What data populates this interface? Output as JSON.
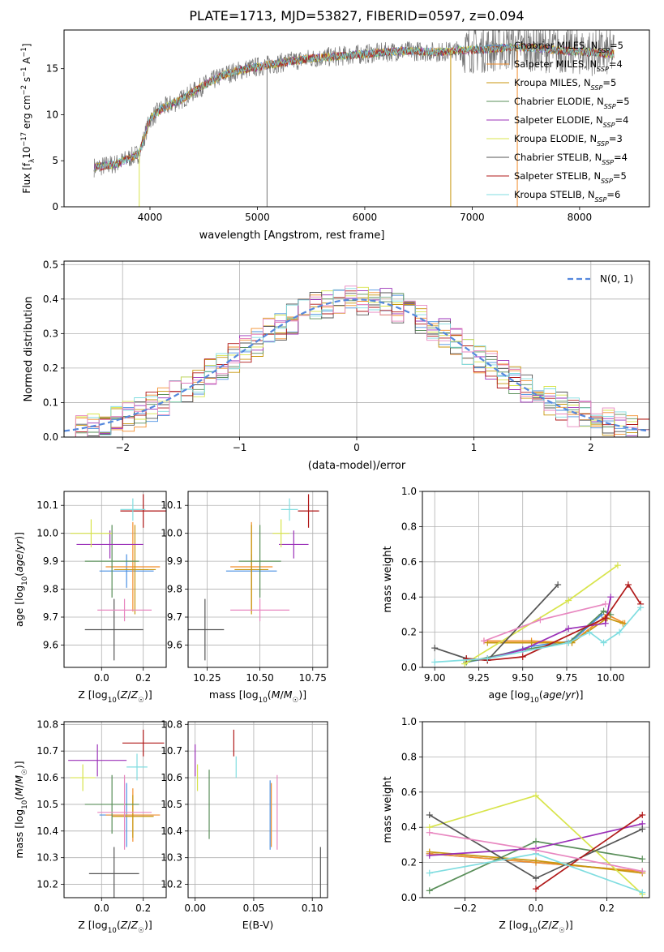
{
  "title": "PLATE=1713, MJD=53827, FIBERID=0597, z=0.094",
  "colors": {
    "chabrier_miles": "#4a90e2",
    "salpeter_miles": "#f28e2b",
    "kroupa_miles": "#c8960c",
    "chabrier_elodie": "#5a8f5a",
    "salpeter_elodie": "#9b30b8",
    "kroupa_elodie": "#d8e44c",
    "chabrier_stelib": "#555555",
    "salpeter_stelib": "#b01818",
    "kroupa_stelib": "#80dde0",
    "normal": "#5588dd",
    "pink": "#e887c0",
    "data": "#777777"
  },
  "chart_data": [
    {
      "id": "spectrum",
      "type": "line",
      "xlabel": "wavelength [Angstrom, rest frame]",
      "ylabel": "Flux [f_λ10^-17 erg cm^-2 s^-1 A^-1]",
      "xlim": [
        3200,
        8650
      ],
      "ylim": [
        0,
        19.2
      ],
      "xticks": [
        4000,
        5000,
        6000,
        7000,
        8000
      ],
      "yticks": [
        0,
        5,
        10,
        15
      ],
      "legend_position": "top-right",
      "legend": [
        {
          "label": "Chabrier MILES, N_SSP=5",
          "color_key": "chabrier_miles"
        },
        {
          "label": "Salpeter MILES, N_SSP=4",
          "color_key": "salpeter_miles"
        },
        {
          "label": "Kroupa MILES, N_SSP=5",
          "color_key": "kroupa_miles"
        },
        {
          "label": "Chabrier ELODIE, N_SSP=5",
          "color_key": "chabrier_elodie"
        },
        {
          "label": "Salpeter ELODIE, N_SSP=4",
          "color_key": "salpeter_elodie"
        },
        {
          "label": "Kroupa ELODIE, N_SSP=3",
          "color_key": "kroupa_elodie"
        },
        {
          "label": "Chabrier STELIB, N_SSP=4",
          "color_key": "chabrier_stelib"
        },
        {
          "label": "Salpeter STELIB, N_SSP=5",
          "color_key": "salpeter_stelib"
        },
        {
          "label": "Kroupa STELIB, N_SSP=6",
          "color_key": "kroupa_stelib"
        }
      ],
      "continuum": {
        "x": [
          3500,
          3700,
          3900,
          4000,
          4100,
          4300,
          4500,
          4700,
          4900,
          5100,
          5300,
          5500,
          5700,
          5900,
          6100,
          6300,
          6500,
          6700,
          6900,
          7100,
          7300,
          7500,
          7700,
          7900,
          8100,
          8300
        ],
        "y": [
          4.3,
          4.7,
          5.8,
          9.5,
          10.6,
          11.7,
          13.2,
          14.4,
          15.0,
          15.4,
          15.8,
          16.1,
          16.3,
          16.5,
          16.7,
          16.9,
          16.9,
          16.8,
          17.0,
          17.1,
          17.3,
          17.3,
          17.1,
          16.9,
          16.8,
          16.6
        ]
      },
      "vertical_spikes": [
        {
          "x": 3900,
          "color_key": "kroupa_elodie",
          "y0": 0,
          "y1": 6
        },
        {
          "x": 5090,
          "color_key": "data",
          "y0": 0,
          "y1": 15
        },
        {
          "x": 6800,
          "color_key": "kroupa_miles",
          "y0": 0,
          "y1": 17
        },
        {
          "x": 7420,
          "color_key": "salpeter_miles",
          "y0": 0,
          "y1": 17.5
        }
      ]
    },
    {
      "id": "residuals",
      "type": "line",
      "xlabel": "(data-model)/error",
      "ylabel": "Normed distribution",
      "xlim": [
        -2.5,
        2.5
      ],
      "ylim": [
        0,
        0.51
      ],
      "xticks": [
        -2,
        -1,
        0,
        1,
        2
      ],
      "yticks": [
        0.0,
        0.1,
        0.2,
        0.3,
        0.4,
        0.5
      ],
      "grid": true,
      "legend_position": "top-right",
      "legend": [
        {
          "label": "N(0, 1)",
          "color_key": "normal"
        }
      ],
      "bin_width": 0.1
    },
    {
      "id": "age_vs_Z",
      "type": "scatter",
      "xlabel": "Z [log10(Z/Z☉)]",
      "ylabel": "age  [log10(age/yr)]",
      "xlim": [
        -0.18,
        0.31
      ],
      "ylim": [
        9.52,
        10.15
      ],
      "xticks": [
        0.0,
        0.2
      ],
      "yticks": [
        9.6,
        9.7,
        9.8,
        9.9,
        10.0,
        10.1
      ],
      "grid": true,
      "points": [
        {
          "key": "chabrier_miles",
          "x": 0.12,
          "y": 9.865,
          "xerr": 0.13,
          "yerr": 0.06
        },
        {
          "key": "salpeter_miles",
          "x": 0.15,
          "y": 9.88,
          "xerr": 0.13,
          "yerr": 0.16
        },
        {
          "key": "kroupa_miles",
          "x": 0.16,
          "y": 9.87,
          "xerr": 0.1,
          "yerr": 0.16
        },
        {
          "key": "chabrier_elodie",
          "x": 0.05,
          "y": 9.9,
          "xerr": 0.13,
          "yerr": 0.13
        },
        {
          "key": "salpeter_elodie",
          "x": 0.04,
          "y": 9.96,
          "xerr": 0.16,
          "yerr": 0.05
        },
        {
          "key": "kroupa_elodie",
          "x": -0.05,
          "y": 10.0,
          "xerr": 0.1,
          "yerr": 0.05
        },
        {
          "key": "chabrier_stelib",
          "x": 0.06,
          "y": 9.655,
          "xerr": 0.14,
          "yerr": 0.11
        },
        {
          "key": "salpeter_stelib",
          "x": 0.2,
          "y": 10.08,
          "xerr": 0.11,
          "yerr": 0.06
        },
        {
          "key": "kroupa_stelib",
          "x": 0.15,
          "y": 10.085,
          "xerr": 0.06,
          "yerr": 0.04
        },
        {
          "key": "pink",
          "x": 0.11,
          "y": 9.725,
          "xerr": 0.13,
          "yerr": 0.04
        }
      ]
    },
    {
      "id": "age_vs_mass",
      "type": "scatter",
      "xlabel": "mass [log10(M/M☉)]",
      "xlim": [
        10.16,
        10.82
      ],
      "ylim": [
        9.52,
        10.15
      ],
      "xticks": [
        10.25,
        10.5,
        10.75
      ],
      "yticks": [
        9.6,
        9.7,
        9.8,
        9.9,
        10.0,
        10.1
      ],
      "grid": true,
      "points": [
        {
          "key": "chabrier_miles",
          "x": 10.46,
          "y": 9.865,
          "xerr": 0.12,
          "yerr": 0.06
        },
        {
          "key": "salpeter_miles",
          "x": 10.46,
          "y": 9.88,
          "xerr": 0.1,
          "yerr": 0.16
        },
        {
          "key": "kroupa_miles",
          "x": 10.46,
          "y": 9.87,
          "xerr": 0.08,
          "yerr": 0.16
        },
        {
          "key": "chabrier_elodie",
          "x": 10.5,
          "y": 9.9,
          "xerr": 0.1,
          "yerr": 0.13
        },
        {
          "key": "salpeter_elodie",
          "x": 10.66,
          "y": 9.96,
          "xerr": 0.07,
          "yerr": 0.05
        },
        {
          "key": "kroupa_elodie",
          "x": 10.6,
          "y": 10.0,
          "xerr": 0.04,
          "yerr": 0.05
        },
        {
          "key": "chabrier_stelib",
          "x": 10.24,
          "y": 9.655,
          "xerr": 0.09,
          "yerr": 0.11
        },
        {
          "key": "salpeter_stelib",
          "x": 10.73,
          "y": 10.08,
          "xerr": 0.05,
          "yerr": 0.06
        },
        {
          "key": "kroupa_stelib",
          "x": 10.64,
          "y": 10.085,
          "xerr": 0.04,
          "yerr": 0.04
        },
        {
          "key": "pink",
          "x": 10.5,
          "y": 9.725,
          "xerr": 0.14,
          "yerr": 0.04
        }
      ]
    },
    {
      "id": "weight_vs_age",
      "type": "line",
      "xlabel": "age  [log10(age/yr)]",
      "ylabel": "mass weight",
      "xlim": [
        8.93,
        10.22
      ],
      "ylim": [
        0,
        1.0
      ],
      "xticks": [
        9.0,
        9.25,
        9.5,
        9.75,
        10.0
      ],
      "yticks": [
        0.0,
        0.2,
        0.4,
        0.6,
        0.8,
        1.0
      ],
      "grid": true,
      "series": [
        {
          "key": "chabrier_miles",
          "x": [
            9.18,
            9.3,
            9.55,
            9.78,
            9.95
          ],
          "y": [
            0.03,
            0.05,
            0.12,
            0.15,
            0.3
          ]
        },
        {
          "key": "salpeter_miles",
          "x": [
            9.28,
            9.55,
            9.78,
            9.98,
            10.08
          ],
          "y": [
            0.15,
            0.15,
            0.14,
            0.3,
            0.25
          ]
        },
        {
          "key": "kroupa_miles",
          "x": [
            9.3,
            9.55,
            9.78,
            9.98,
            10.07
          ],
          "y": [
            0.14,
            0.14,
            0.14,
            0.28,
            0.25
          ]
        },
        {
          "key": "chabrier_elodie",
          "x": [
            9.18,
            9.5,
            9.76,
            9.96,
            10.0
          ],
          "y": [
            0.03,
            0.1,
            0.14,
            0.32,
            0.3
          ]
        },
        {
          "key": "salpeter_elodie",
          "x": [
            9.3,
            9.5,
            9.76,
            9.97,
            10.0
          ],
          "y": [
            0.05,
            0.1,
            0.22,
            0.25,
            0.4
          ]
        },
        {
          "key": "kroupa_elodie",
          "x": [
            9.17,
            9.76,
            10.04
          ],
          "y": [
            0.02,
            0.38,
            0.58
          ]
        },
        {
          "key": "chabrier_stelib",
          "x": [
            9.0,
            9.18,
            9.3,
            9.7
          ],
          "y": [
            0.11,
            0.05,
            0.04,
            0.47
          ]
        },
        {
          "key": "salpeter_stelib",
          "x": [
            9.18,
            9.3,
            9.5,
            9.97,
            10.1,
            10.17
          ],
          "y": [
            0.05,
            0.04,
            0.06,
            0.28,
            0.47,
            0.36
          ]
        },
        {
          "key": "kroupa_stelib",
          "x": [
            9.0,
            9.3,
            9.76,
            9.88,
            9.96,
            10.05,
            10.17
          ],
          "y": [
            0.03,
            0.05,
            0.14,
            0.2,
            0.14,
            0.2,
            0.34
          ]
        },
        {
          "key": "pink",
          "x": [
            9.28,
            9.6,
            9.97
          ],
          "y": [
            0.15,
            0.27,
            0.36
          ]
        }
      ]
    },
    {
      "id": "mass_vs_Z",
      "type": "scatter",
      "xlabel": "Z [log10(Z/Z☉)]",
      "ylabel": "mass [log10(M/M☉)]",
      "xlim": [
        -0.18,
        0.31
      ],
      "ylim": [
        10.15,
        10.81
      ],
      "xticks": [
        0.0,
        0.2
      ],
      "yticks": [
        10.2,
        10.3,
        10.4,
        10.5,
        10.6,
        10.7,
        10.8
      ],
      "grid": true,
      "points": [
        {
          "key": "chabrier_miles",
          "x": 0.12,
          "y": 10.46,
          "xerr": 0.13,
          "yerr": 0.12
        },
        {
          "key": "salpeter_miles",
          "x": 0.15,
          "y": 10.46,
          "xerr": 0.13,
          "yerr": 0.1
        },
        {
          "key": "kroupa_miles",
          "x": 0.15,
          "y": 10.455,
          "xerr": 0.1,
          "yerr": 0.08
        },
        {
          "key": "chabrier_elodie",
          "x": 0.05,
          "y": 10.5,
          "xerr": 0.13,
          "yerr": 0.11
        },
        {
          "key": "salpeter_elodie",
          "x": -0.02,
          "y": 10.665,
          "xerr": 0.14,
          "yerr": 0.06
        },
        {
          "key": "kroupa_elodie",
          "x": -0.09,
          "y": 10.6,
          "xerr": 0.06,
          "yerr": 0.05
        },
        {
          "key": "chabrier_stelib",
          "x": 0.06,
          "y": 10.24,
          "xerr": 0.12,
          "yerr": 0.1
        },
        {
          "key": "salpeter_stelib",
          "x": 0.2,
          "y": 10.73,
          "xerr": 0.1,
          "yerr": 0.05
        },
        {
          "key": "kroupa_stelib",
          "x": 0.17,
          "y": 10.64,
          "xerr": 0.05,
          "yerr": 0.05
        },
        {
          "key": "pink",
          "x": 0.11,
          "y": 10.47,
          "xerr": 0.13,
          "yerr": 0.14
        }
      ]
    },
    {
      "id": "mass_vs_ebv",
      "type": "scatter",
      "xlabel": "E(B-V)",
      "xlim": [
        -0.006,
        0.113
      ],
      "ylim": [
        10.15,
        10.81
      ],
      "xticks": [
        0.0,
        0.05,
        0.1
      ],
      "yticks": [
        10.2,
        10.3,
        10.4,
        10.5,
        10.6,
        10.7,
        10.8
      ],
      "grid": true,
      "points": [
        {
          "key": "salpeter_elodie",
          "x": 0.0,
          "y": 10.665,
          "xerr": 0,
          "yerr": 0.06
        },
        {
          "key": "kroupa_elodie",
          "x": 0.002,
          "y": 10.6,
          "xerr": 0,
          "yerr": 0.05
        },
        {
          "key": "chabrier_elodie",
          "x": 0.012,
          "y": 10.5,
          "xerr": 0,
          "yerr": 0.13
        },
        {
          "key": "salpeter_stelib",
          "x": 0.033,
          "y": 10.73,
          "xerr": 0,
          "yerr": 0.05
        },
        {
          "key": "kroupa_stelib",
          "x": 0.035,
          "y": 10.64,
          "xerr": 0,
          "yerr": 0.04
        },
        {
          "key": "chabrier_miles",
          "x": 0.064,
          "y": 10.46,
          "xerr": 0,
          "yerr": 0.13
        },
        {
          "key": "salpeter_miles",
          "x": 0.065,
          "y": 10.46,
          "xerr": 0,
          "yerr": 0.12
        },
        {
          "key": "pink",
          "x": 0.07,
          "y": 10.47,
          "xerr": 0,
          "yerr": 0.14
        },
        {
          "key": "chabrier_stelib",
          "x": 0.107,
          "y": 10.24,
          "xerr": 0,
          "yerr": 0.1
        }
      ]
    },
    {
      "id": "weight_vs_Z",
      "type": "line",
      "xlabel": "Z [log10(Z/Z☉)]",
      "ylabel": "mass weight",
      "xlim": [
        -0.32,
        0.32
      ],
      "ylim": [
        0,
        1.0
      ],
      "xticks": [
        -0.2,
        0.0,
        0.2
      ],
      "yticks": [
        0.0,
        0.2,
        0.4,
        0.6,
        0.8,
        1.0
      ],
      "grid": true,
      "series": [
        {
          "key": "chabrier_miles",
          "x": [
            -0.3,
            0.0,
            0.3
          ],
          "y": [
            0.25,
            0.2,
            0.15
          ]
        },
        {
          "key": "salpeter_miles",
          "x": [
            -0.3,
            0.0,
            0.3
          ],
          "y": [
            0.25,
            0.2,
            0.15
          ]
        },
        {
          "key": "kroupa_miles",
          "x": [
            -0.3,
            0.0,
            0.3
          ],
          "y": [
            0.26,
            0.21,
            0.14
          ]
        },
        {
          "key": "chabrier_elodie",
          "x": [
            -0.3,
            0.0,
            0.3
          ],
          "y": [
            0.04,
            0.32,
            0.22
          ]
        },
        {
          "key": "salpeter_elodie",
          "x": [
            -0.3,
            0.0,
            0.3
          ],
          "y": [
            0.24,
            0.28,
            0.42
          ]
        },
        {
          "key": "kroupa_elodie",
          "x": [
            -0.3,
            0.0,
            0.3
          ],
          "y": [
            0.4,
            0.58,
            0.02
          ]
        },
        {
          "key": "chabrier_stelib",
          "x": [
            -0.3,
            0.0,
            0.3
          ],
          "y": [
            0.47,
            0.11,
            0.39
          ]
        },
        {
          "key": "salpeter_stelib",
          "x": [
            0.0,
            0.3
          ],
          "y": [
            0.05,
            0.47
          ]
        },
        {
          "key": "kroupa_stelib",
          "x": [
            -0.3,
            0.0,
            0.3
          ],
          "y": [
            0.14,
            0.25,
            0.03
          ]
        },
        {
          "key": "pink",
          "x": [
            -0.3,
            0.0,
            0.3
          ],
          "y": [
            0.37,
            0.27,
            0.15
          ]
        }
      ]
    }
  ]
}
